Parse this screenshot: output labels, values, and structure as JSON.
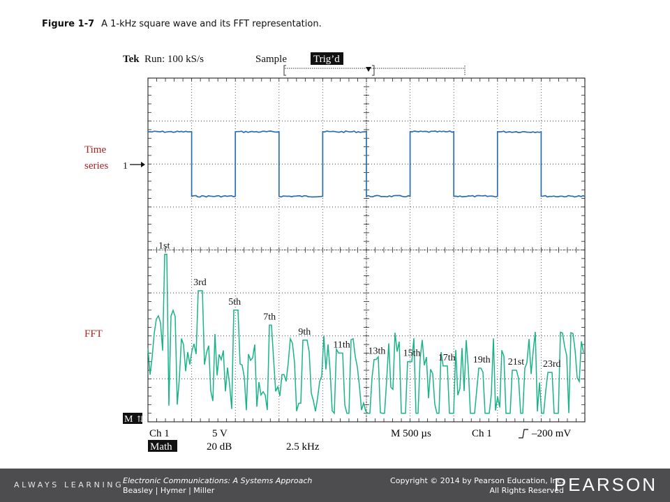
{
  "caption": {
    "number": "Figure 1-7",
    "text": "A 1-kHz square wave and its FFT representation."
  },
  "scope": {
    "header": {
      "brand": "Tek",
      "run": "Run: 100 kS/s",
      "mode": "Sample",
      "trigger_badge": "Trig’d"
    },
    "side_labels": {
      "time_series_line1": "Time",
      "time_series_line2": "series",
      "fft": "FFT"
    },
    "markers": {
      "ch1": "1",
      "math": "M"
    },
    "readouts": {
      "ch": "Ch 1",
      "volts": "5 V",
      "timebase": "M 500 µs",
      "trig_ch": "Ch 1",
      "trig_slope_icon": "rising-edge-icon",
      "trig_level": "–200 mV",
      "math_badge": "Math",
      "db": "20 dB",
      "freq": "2.5 kHz"
    },
    "colors": {
      "time_trace": "#2b6cb0",
      "fft_trace": "#19b38a",
      "label_red": "#b0201f",
      "grid": "#444444",
      "badge_bg": "#111111",
      "footer_bg": "#4d4d4f"
    }
  },
  "chart_data": [
    {
      "type": "line",
      "name": "Time series",
      "unit_x": "ms",
      "unit_y": "V",
      "x": [
        0,
        0.5,
        0.5,
        1.0,
        1.0,
        1.5,
        1.5,
        2.0,
        2.0,
        2.5,
        2.5,
        3.0,
        3.0,
        3.5,
        3.5,
        4.0,
        4.0,
        4.5,
        4.5,
        5.0
      ],
      "y": [
        5,
        5,
        -5,
        -5,
        5,
        5,
        -5,
        -5,
        5,
        5,
        -5,
        -5,
        5,
        5,
        -5,
        -5,
        5,
        5,
        -5,
        -5
      ],
      "xlim": [
        0,
        5
      ],
      "divisions_x": 10,
      "volts_per_div": 5
    },
    {
      "type": "line",
      "name": "FFT",
      "db_per_div": 20,
      "freq_per_div": 2.5,
      "freq_unit": "kHz",
      "harmonic_labels": [
        "1st",
        "3rd",
        "5th",
        "7th",
        "9th",
        "11th",
        "13th",
        "15th",
        "17th",
        "19th",
        "21st",
        "23rd"
      ],
      "harmonic_freq_khz": [
        1,
        3,
        5,
        7,
        9,
        11,
        13,
        15,
        17,
        19,
        21,
        23
      ],
      "harmonic_peak_div_from_top": [
        0.1,
        0.95,
        1.4,
        1.75,
        2.1,
        2.4,
        2.55,
        2.6,
        2.7,
        2.75,
        2.8,
        2.85
      ]
    }
  ],
  "footer": {
    "tagline": "ALWAYS LEARNING",
    "book_title": "Electronic Communications: A Systems Approach",
    "authors": "Beasley | Hymer | Miller",
    "copyright": "Copyright © 2014 by Pearson Education, Inc.",
    "rights": "All Rights Reserved",
    "brand": "PEARSON"
  }
}
